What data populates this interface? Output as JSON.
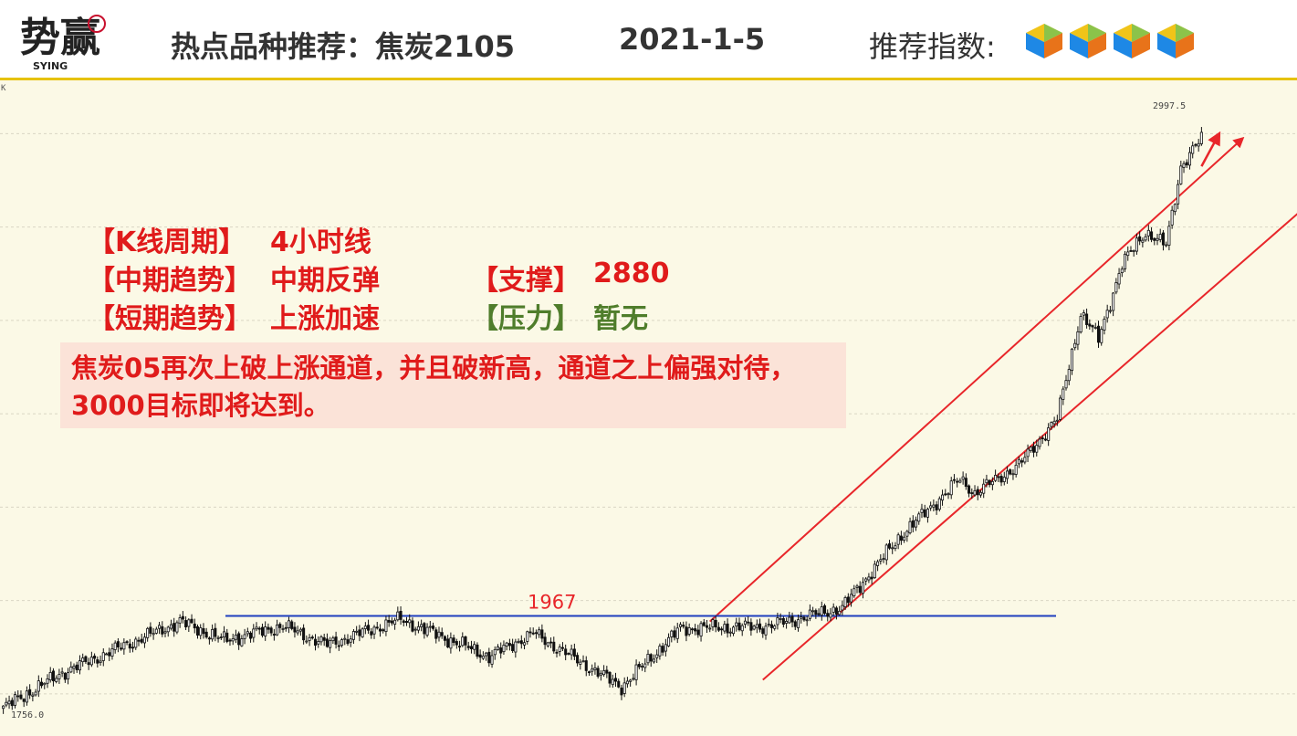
{
  "header": {
    "logo_text": "势赢",
    "logo_sub": "SYING",
    "title": "热点品种推荐：焦炭2105",
    "date": "2021-1-5",
    "index_label": "推荐指数:",
    "recommend_cubes": 4
  },
  "analysis": {
    "period_label": "【K线周期】",
    "period_value": "4小时线",
    "mid_trend_label": "【中期趋势】",
    "mid_trend_value": "中期反弹",
    "short_trend_label": "【短期趋势】",
    "short_trend_value": "上涨加速",
    "support_label": "【支撑】",
    "support_value": "2880",
    "pressure_label": "【压力】",
    "pressure_value": "暂无",
    "comment": "焦炭05再次上破上涨通道，并且破新高，通道之上偏强对待，3000目标即将达到。"
  },
  "colors": {
    "up_candle": "#ffffff",
    "down_candle": "#111111",
    "support_line": "#1f3fbf",
    "channel": "#e8262a",
    "accent": "#e6c20c",
    "text_red": "#e01b1b",
    "text_green": "#4f7d2b"
  },
  "chart_data": {
    "type": "candlestick",
    "corner_label": "K",
    "max_label": "2997.5",
    "min_label": "1756.0",
    "ylim": [
      1745,
      3075
    ],
    "horizontal_line": {
      "value": 1967,
      "label": "1967"
    },
    "key_points": [
      {
        "i": 0,
        "v": 1770
      },
      {
        "i": 20,
        "v": 1845
      },
      {
        "i": 40,
        "v": 1900
      },
      {
        "i": 60,
        "v": 1955
      },
      {
        "i": 75,
        "v": 1915
      },
      {
        "i": 95,
        "v": 1945
      },
      {
        "i": 110,
        "v": 1905
      },
      {
        "i": 135,
        "v": 1960
      },
      {
        "i": 165,
        "v": 1880
      },
      {
        "i": 180,
        "v": 1930
      },
      {
        "i": 210,
        "v": 1815
      },
      {
        "i": 230,
        "v": 1940
      },
      {
        "i": 260,
        "v": 1945
      },
      {
        "i": 285,
        "v": 1985
      },
      {
        "i": 305,
        "v": 2140
      },
      {
        "i": 325,
        "v": 2260
      },
      {
        "i": 330,
        "v": 2230
      },
      {
        "i": 345,
        "v": 2290
      },
      {
        "i": 358,
        "v": 2390
      },
      {
        "i": 366,
        "v": 2615
      },
      {
        "i": 372,
        "v": 2560
      },
      {
        "i": 380,
        "v": 2720
      },
      {
        "i": 388,
        "v": 2790
      },
      {
        "i": 395,
        "v": 2760
      },
      {
        "i": 400,
        "v": 2930
      },
      {
        "i": 407,
        "v": 2990
      }
    ],
    "channels": [
      {
        "from": {
          "i": 240,
          "v": 1955
        },
        "to": {
          "i": 421,
          "v": 2990
        }
      },
      {
        "from": {
          "i": 258,
          "v": 1830
        },
        "to": {
          "i": 449,
          "v": 2880
        }
      }
    ],
    "breakout_arrow": {
      "from": {
        "i": 407,
        "v": 2930
      },
      "to": {
        "i": 413,
        "v": 3000
      }
    },
    "grid": "horizontal dashed"
  }
}
